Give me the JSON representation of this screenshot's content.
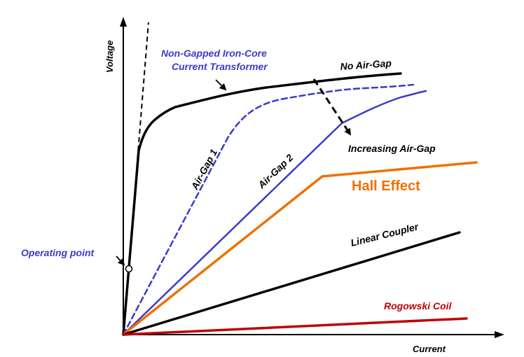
{
  "diagram": {
    "axes": {
      "x_label": "Current",
      "y_label": "Voltage"
    },
    "labels": {
      "non_gapped_line1": "Non-Gapped Iron-Core",
      "non_gapped_line2": "Current Transformer",
      "no_air_gap": "No Air-Gap",
      "air_gap_1": "Air-Gap 1",
      "air_gap_2": "Air-Gap 2",
      "increasing_air_gap": "Increasing Air-Gap",
      "hall_effect": "Hall Effect",
      "linear_coupler": "Linear Coupler",
      "rogowski_coil": "Rogowski Coil",
      "operating_point": "Operating point"
    },
    "colors": {
      "black": "#000000",
      "blue": "#3b3bc8",
      "orange": "#f07000",
      "red": "#c00000"
    }
  }
}
